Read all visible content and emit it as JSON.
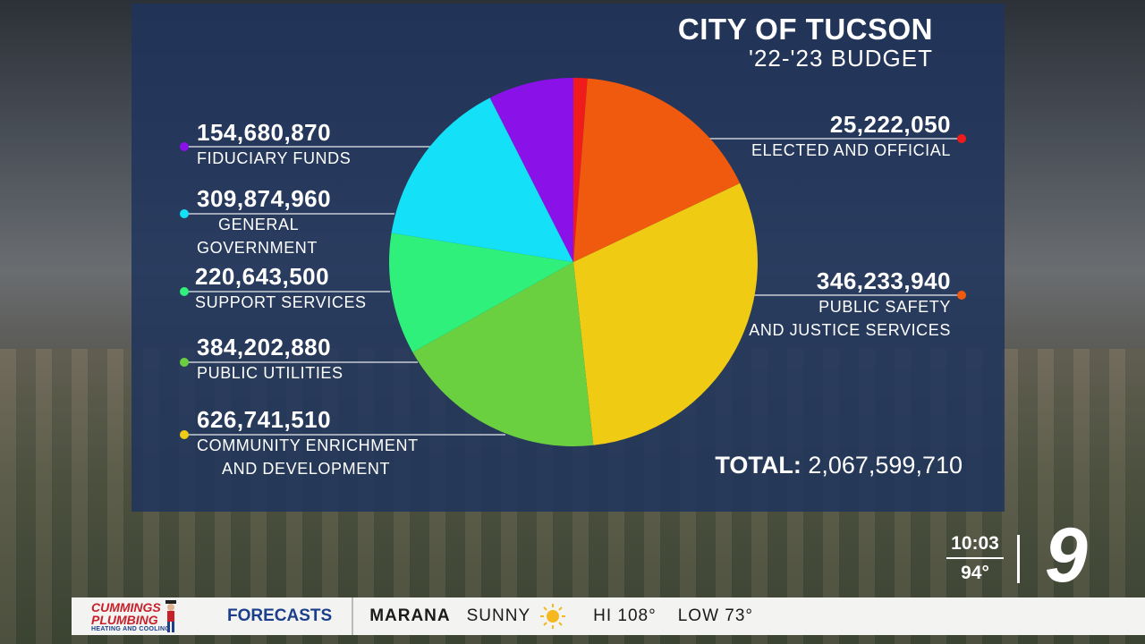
{
  "chart_data": {
    "type": "pie",
    "title": "CITY OF TUCSON",
    "subtitle": "'22-'23 BUDGET",
    "slices": [
      {
        "label": "ELECTED AND OFFICIAL",
        "label_lines": [
          "ELECTED AND OFFICIAL"
        ],
        "value": 25222050,
        "value_text": "25,222,050",
        "color": "#f01c1c",
        "side": "right"
      },
      {
        "label": "PUBLIC SAFETY AND JUSTICE SERVICES",
        "label_lines": [
          "PUBLIC SAFETY",
          "AND JUSTICE SERVICES"
        ],
        "value": 346233940,
        "value_text": "346,233,940",
        "color": "#ef5a0f",
        "side": "right"
      },
      {
        "label": "COMMUNITY ENRICHMENT AND DEVELOPMENT",
        "label_lines": [
          "COMMUNITY ENRICHMENT",
          "AND DEVELOPMENT"
        ],
        "value": 626741510,
        "value_text": "626,741,510",
        "color": "#f0cb14",
        "side": "left"
      },
      {
        "label": "PUBLIC UTILITIES",
        "label_lines": [
          "PUBLIC UTILITIES"
        ],
        "value": 384202880,
        "value_text": "384,202,880",
        "color": "#6bd040",
        "side": "left"
      },
      {
        "label": "SUPPORT SERVICES",
        "label_lines": [
          "SUPPORT SERVICES"
        ],
        "value": 220643500,
        "value_text": "220,643,500",
        "color": "#2ff07a",
        "side": "left"
      },
      {
        "label": "GENERAL GOVERNMENT",
        "label_lines": [
          "GENERAL",
          "GOVERNMENT"
        ],
        "value": 309874960,
        "value_text": "309,874,960",
        "color": "#14e0f7",
        "side": "left"
      },
      {
        "label": "FIDUCIARY FUNDS",
        "label_lines": [
          "FIDUCIARY FUNDS"
        ],
        "value": 154680870,
        "value_text": "154,680,870",
        "color": "#8a12e8",
        "side": "left"
      }
    ],
    "total_label": "TOTAL:",
    "total_value": "2,067,599,710"
  },
  "overlay": {
    "time": "10:03",
    "temp": "94°",
    "channel": "9"
  },
  "ticker": {
    "sponsor_line1": "CUMMINGS",
    "sponsor_line2": "PLUMBING",
    "sponsor_line3": "HEATING AND COOLING",
    "section": "FORECASTS",
    "city": "MARANA",
    "condition": "SUNNY",
    "condition_icon": "sun-icon",
    "hi": "HI 108°",
    "low": "LOW 73°"
  }
}
